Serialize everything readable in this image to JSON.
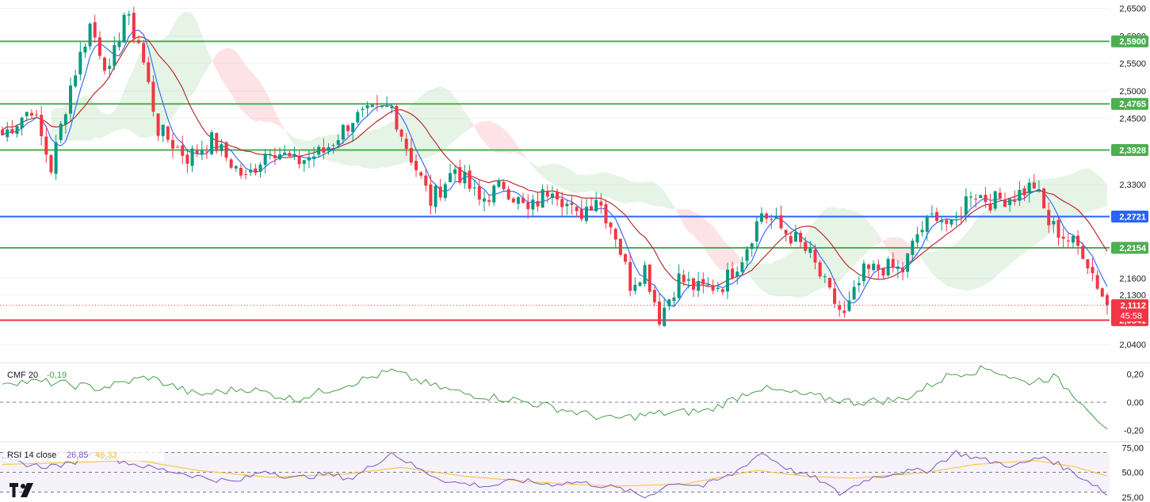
{
  "chart_data": [
    {
      "type": "candlestick",
      "panel": "price",
      "ylim": [
        2.01,
        2.665
      ],
      "y_ticks": [
        "2,6500",
        "2,6000",
        "2,5500",
        "2,5000",
        "2,4500",
        "2,3300",
        "2,1600",
        "2,1300",
        "2,0400"
      ],
      "y_tick_values": [
        2.65,
        2.6,
        2.55,
        2.5,
        2.45,
        2.33,
        2.16,
        2.13,
        2.04
      ],
      "levels": [
        {
          "label": "2,5900",
          "value": 2.59,
          "color": "#4caf50"
        },
        {
          "label": "2,4765",
          "value": 2.4765,
          "color": "#4caf50"
        },
        {
          "label": "2,3928",
          "value": 2.3928,
          "color": "#4caf50"
        },
        {
          "label": "2,2721",
          "value": 2.2721,
          "color": "#2962ff"
        },
        {
          "label": "2,2154",
          "value": 2.2154,
          "color": "#4caf50"
        },
        {
          "label": "2,0841",
          "value": 2.0841,
          "color": "#f23645"
        }
      ],
      "last_price": {
        "label": "2,1112",
        "value": 2.1112,
        "countdown": "45:58",
        "color": "#f23645"
      },
      "colors": {
        "up": "#089981",
        "down": "#f23645",
        "tenkan": "#2962ff",
        "kijun": "#b71c1c",
        "cloud_bull": "#4caf50",
        "cloud_bear": "#f23645"
      },
      "candles_shown": 228,
      "trend_path": [
        [
          0,
          2.42
        ],
        [
          6,
          2.47
        ],
        [
          10,
          2.36
        ],
        [
          14,
          2.51
        ],
        [
          18,
          2.62
        ],
        [
          22,
          2.53
        ],
        [
          25,
          2.64
        ],
        [
          28,
          2.59
        ],
        [
          32,
          2.43
        ],
        [
          38,
          2.38
        ],
        [
          43,
          2.41
        ],
        [
          50,
          2.34
        ],
        [
          55,
          2.4
        ],
        [
          60,
          2.37
        ],
        [
          66,
          2.39
        ],
        [
          72,
          2.45
        ],
        [
          80,
          2.47
        ],
        [
          83,
          2.4
        ],
        [
          88,
          2.3
        ],
        [
          93,
          2.36
        ],
        [
          98,
          2.3
        ],
        [
          103,
          2.33
        ],
        [
          108,
          2.28
        ],
        [
          113,
          2.33
        ],
        [
          118,
          2.27
        ],
        [
          122,
          2.31
        ],
        [
          126,
          2.24
        ],
        [
          129,
          2.15
        ],
        [
          132,
          2.18
        ],
        [
          135,
          2.09
        ],
        [
          139,
          2.16
        ],
        [
          143,
          2.14
        ],
        [
          148,
          2.15
        ],
        [
          152,
          2.2
        ],
        [
          156,
          2.28
        ],
        [
          160,
          2.25
        ],
        [
          163,
          2.23
        ],
        [
          166,
          2.2
        ],
        [
          170,
          2.13
        ],
        [
          173,
          2.09
        ],
        [
          177,
          2.17
        ],
        [
          181,
          2.18
        ],
        [
          185,
          2.175
        ],
        [
          188,
          2.24
        ],
        [
          192,
          2.28
        ],
        [
          195,
          2.25
        ],
        [
          199,
          2.32
        ],
        [
          203,
          2.3
        ],
        [
          208,
          2.31
        ],
        [
          212,
          2.33
        ],
        [
          215,
          2.26
        ],
        [
          219,
          2.23
        ],
        [
          222,
          2.21
        ],
        [
          225,
          2.15
        ],
        [
          227,
          2.111
        ]
      ]
    },
    {
      "type": "line",
      "panel": "indicator",
      "title": "CMF 20",
      "value_label": "-0,19",
      "color": "#43a047",
      "ylim": [
        -0.27,
        0.27
      ],
      "y_ticks": [
        "0,20",
        "0,00",
        "-0,20"
      ],
      "y_tick_values": [
        0.2,
        0.0,
        -0.2
      ],
      "path": [
        [
          0,
          0.15
        ],
        [
          10,
          0.14
        ],
        [
          20,
          0.1
        ],
        [
          30,
          0.18
        ],
        [
          40,
          0.05
        ],
        [
          50,
          0.1
        ],
        [
          60,
          0.02
        ],
        [
          70,
          0.12
        ],
        [
          80,
          0.22
        ],
        [
          88,
          0.12
        ],
        [
          95,
          0.06
        ],
        [
          105,
          0.02
        ],
        [
          115,
          -0.05
        ],
        [
          125,
          -0.12
        ],
        [
          135,
          -0.08
        ],
        [
          145,
          -0.06
        ],
        [
          155,
          0.1
        ],
        [
          165,
          0.05
        ],
        [
          175,
          0.0
        ],
        [
          185,
          0.02
        ],
        [
          195,
          0.2
        ],
        [
          203,
          0.24
        ],
        [
          210,
          0.14
        ],
        [
          216,
          0.18
        ],
        [
          222,
          0.0
        ],
        [
          227,
          -0.19
        ]
      ]
    },
    {
      "type": "line",
      "panel": "indicator",
      "title": "RSI 14 close",
      "series": [
        {
          "name": "RSI",
          "value_label": "26,85",
          "color": "#7e57c2"
        },
        {
          "name": "MA",
          "value_label": "46,33",
          "color": "#fbc02d"
        }
      ],
      "ylim": [
        20,
        80
      ],
      "y_ticks": [
        "75,00",
        "50,00",
        "25,00"
      ],
      "y_tick_values": [
        75,
        50,
        25
      ],
      "band": [
        30,
        70
      ],
      "rsi_path": [
        [
          0,
          62
        ],
        [
          8,
          56
        ],
        [
          14,
          58
        ],
        [
          18,
          70
        ],
        [
          24,
          62
        ],
        [
          30,
          55
        ],
        [
          36,
          50
        ],
        [
          42,
          44
        ],
        [
          48,
          40
        ],
        [
          54,
          52
        ],
        [
          60,
          44
        ],
        [
          66,
          48
        ],
        [
          72,
          44
        ],
        [
          80,
          70
        ],
        [
          86,
          52
        ],
        [
          92,
          40
        ],
        [
          100,
          36
        ],
        [
          106,
          42
        ],
        [
          112,
          38
        ],
        [
          118,
          40
        ],
        [
          124,
          36
        ],
        [
          128,
          32
        ],
        [
          132,
          25
        ],
        [
          138,
          40
        ],
        [
          144,
          36
        ],
        [
          150,
          48
        ],
        [
          156,
          70
        ],
        [
          162,
          52
        ],
        [
          168,
          42
        ],
        [
          172,
          28
        ],
        [
          178,
          44
        ],
        [
          184,
          50
        ],
        [
          190,
          52
        ],
        [
          196,
          70
        ],
        [
          202,
          62
        ],
        [
          208,
          56
        ],
        [
          214,
          66
        ],
        [
          220,
          50
        ],
        [
          225,
          36
        ],
        [
          227,
          26.85
        ]
      ],
      "ma_path": [
        [
          0,
          58
        ],
        [
          15,
          60
        ],
        [
          28,
          62
        ],
        [
          40,
          52
        ],
        [
          55,
          45
        ],
        [
          70,
          48
        ],
        [
          82,
          55
        ],
        [
          95,
          46
        ],
        [
          110,
          40
        ],
        [
          125,
          36
        ],
        [
          140,
          38
        ],
        [
          155,
          52
        ],
        [
          165,
          46
        ],
        [
          175,
          44
        ],
        [
          190,
          50
        ],
        [
          200,
          58
        ],
        [
          212,
          62
        ],
        [
          220,
          56
        ],
        [
          227,
          46.33
        ]
      ]
    }
  ],
  "branding": {
    "logo_text": "TV"
  }
}
